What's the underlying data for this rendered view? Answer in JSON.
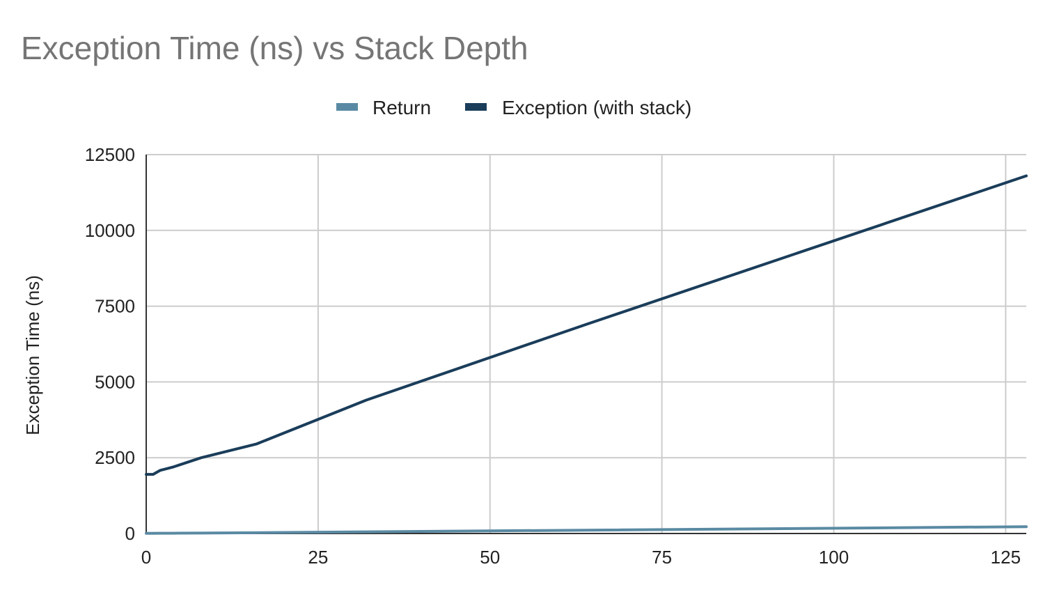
{
  "chart_data": {
    "type": "line",
    "title": "Exception Time (ns) vs Stack Depth",
    "xlabel": "",
    "ylabel": "Exception Time (ns)",
    "xlim": [
      0,
      128
    ],
    "ylim": [
      0,
      12500
    ],
    "x_ticks": [
      "0",
      "25",
      "50",
      "75",
      "100",
      "125"
    ],
    "x_tick_values": [
      0,
      25,
      50,
      75,
      100,
      125
    ],
    "y_ticks": [
      "0",
      "2500",
      "5000",
      "7500",
      "10000",
      "12500"
    ],
    "y_tick_values": [
      0,
      2500,
      5000,
      7500,
      10000,
      12500
    ],
    "grid": true,
    "legend_position": "top-center",
    "series": [
      {
        "name": "Return",
        "color": "#5a8aa3",
        "x": [
          0,
          1,
          2,
          4,
          8,
          16,
          32,
          64,
          128
        ],
        "y": [
          5,
          6,
          8,
          10,
          15,
          25,
          55,
          110,
          225
        ]
      },
      {
        "name": "Exception (with stack)",
        "color": "#1a3d5a",
        "x": [
          0,
          1,
          2,
          4,
          8,
          16,
          32,
          64,
          128
        ],
        "y": [
          1950,
          1950,
          2080,
          2200,
          2500,
          2950,
          4400,
          6900,
          11800
        ]
      }
    ]
  }
}
